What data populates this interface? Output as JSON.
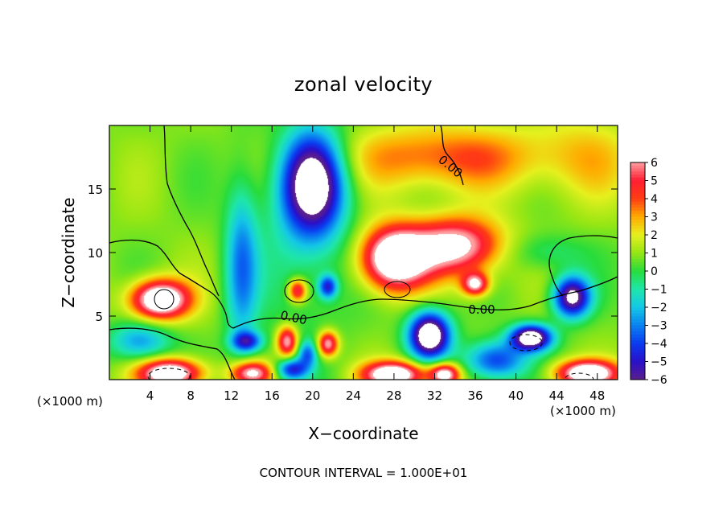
{
  "chart_data": {
    "type": "heatmap",
    "title": "zonal velocity",
    "xlabel": "X−coordinate",
    "ylabel": "Z−coordinate",
    "x_units": "(×1000 m)",
    "x_units_right": "(×1000 m)",
    "xlim": [
      0,
      50
    ],
    "ylim": [
      0,
      20
    ],
    "x_ticks": [
      4,
      8,
      12,
      16,
      20,
      24,
      28,
      32,
      36,
      40,
      44,
      48
    ],
    "x_tick_labels": [
      "4",
      "8",
      "12",
      "16",
      "20",
      "24",
      "28",
      "32",
      "36",
      "40",
      "44",
      "48"
    ],
    "y_ticks": [
      5,
      10,
      15
    ],
    "y_tick_labels": [
      "5",
      "10",
      "15"
    ],
    "colorbar": {
      "min": -6,
      "max": 6,
      "levels": [
        6,
        5,
        4,
        3,
        2,
        1,
        0,
        -1,
        -2,
        -3,
        -4,
        -5,
        -6
      ],
      "labels": [
        "6",
        "5",
        "4",
        "3",
        "2",
        "1",
        "0",
        "−1",
        "−2",
        "−3",
        "−4",
        "−5",
        "−6"
      ],
      "stops": [
        {
          "value": -6,
          "color": "#5a1e8c"
        },
        {
          "value": -5,
          "color": "#2a10c8"
        },
        {
          "value": -4,
          "color": "#0a3cf0"
        },
        {
          "value": -3,
          "color": "#0a82f0"
        },
        {
          "value": -2,
          "color": "#14c8e6"
        },
        {
          "value": -1,
          "color": "#1ee6aa"
        },
        {
          "value": 0,
          "color": "#28dc3c"
        },
        {
          "value": 1,
          "color": "#96e614"
        },
        {
          "value": 2,
          "color": "#e6f01e"
        },
        {
          "value": 3,
          "color": "#ffaa00"
        },
        {
          "value": 4,
          "color": "#ff3c14"
        },
        {
          "value": 5,
          "color": "#ff1e32"
        },
        {
          "value": 6,
          "color": "#ff9ea0"
        }
      ]
    },
    "contour_labels": [
      "0.00",
      "0.00",
      "0.00"
    ],
    "footer": "CONTOUR INTERVAL = 1.000E+01",
    "field": {
      "background": 0.8,
      "features": [
        {
          "x": 33,
          "z": 17.5,
          "sx": 10,
          "sz": 2.5,
          "amp": 3.2
        },
        {
          "x": 47,
          "z": 17.5,
          "sx": 5,
          "sz": 3.5,
          "amp": 1.5
        },
        {
          "x": 20,
          "z": 15.5,
          "sx": 3.0,
          "sz": 4.0,
          "amp": -8.5
        },
        {
          "x": 13,
          "z": 9.0,
          "sx": 1.6,
          "sz": 6.5,
          "amp": -3.6
        },
        {
          "x": 19,
          "z": 10.0,
          "sx": 5.0,
          "sz": 8.0,
          "amp": -1.4
        },
        {
          "x": 28,
          "z": 9.5,
          "sx": 3.2,
          "sz": 2.4,
          "amp": 8.5
        },
        {
          "x": 34,
          "z": 10.5,
          "sx": 4.5,
          "sz": 2.2,
          "amp": 6.5
        },
        {
          "x": 36,
          "z": 7.5,
          "sx": 1.3,
          "sz": 0.9,
          "amp": 6.0
        },
        {
          "x": 5,
          "z": 6.3,
          "sx": 2.8,
          "sz": 1.5,
          "amp": 8.5
        },
        {
          "x": 18.5,
          "z": 7.0,
          "sx": 0.9,
          "sz": 0.9,
          "amp": 5.0
        },
        {
          "x": 21.5,
          "z": 7.3,
          "sx": 0.9,
          "sz": 0.9,
          "amp": -5.0
        },
        {
          "x": 31.5,
          "z": 3.5,
          "sx": 2.0,
          "sz": 1.8,
          "amp": -9.5
        },
        {
          "x": 45.5,
          "z": 6.5,
          "sx": 1.8,
          "sz": 1.6,
          "amp": -8.0
        },
        {
          "x": 41.5,
          "z": 3.3,
          "sx": 2.0,
          "sz": 1.0,
          "amp": -9.0
        },
        {
          "x": 13.5,
          "z": 3.0,
          "sx": 1.5,
          "sz": 0.8,
          "amp": -5.0
        },
        {
          "x": 17.5,
          "z": 3.0,
          "sx": 1.0,
          "sz": 1.2,
          "amp": 6.0
        },
        {
          "x": 21.5,
          "z": 2.8,
          "sx": 1.0,
          "sz": 1.0,
          "amp": 6.0
        },
        {
          "x": 19.5,
          "z": 2.0,
          "sx": 0.9,
          "sz": 1.0,
          "amp": -3.5
        },
        {
          "x": 6,
          "z": 0.5,
          "sx": 3.0,
          "sz": 1.1,
          "amp": 8.0
        },
        {
          "x": 14,
          "z": 0.5,
          "sx": 2.0,
          "sz": 0.9,
          "amp": 6.0
        },
        {
          "x": 28,
          "z": 0.4,
          "sx": 3.0,
          "sz": 1.0,
          "amp": 8.0
        },
        {
          "x": 33,
          "z": 0.4,
          "sx": 1.5,
          "sz": 0.9,
          "amp": 7.0
        },
        {
          "x": 47,
          "z": 0.5,
          "sx": 3.0,
          "sz": 1.0,
          "amp": 8.0
        },
        {
          "x": 18,
          "z": 0.8,
          "sx": 1.5,
          "sz": 0.8,
          "amp": -5.0
        },
        {
          "x": 38,
          "z": 1.5,
          "sx": 3.0,
          "sz": 1.5,
          "amp": -5.0
        },
        {
          "x": 3,
          "z": 3.0,
          "sx": 3.0,
          "sz": 1.5,
          "amp": -3.5
        },
        {
          "x": 43,
          "z": 10.0,
          "sx": 4.0,
          "sz": 1.5,
          "amp": -1.5
        }
      ]
    }
  }
}
